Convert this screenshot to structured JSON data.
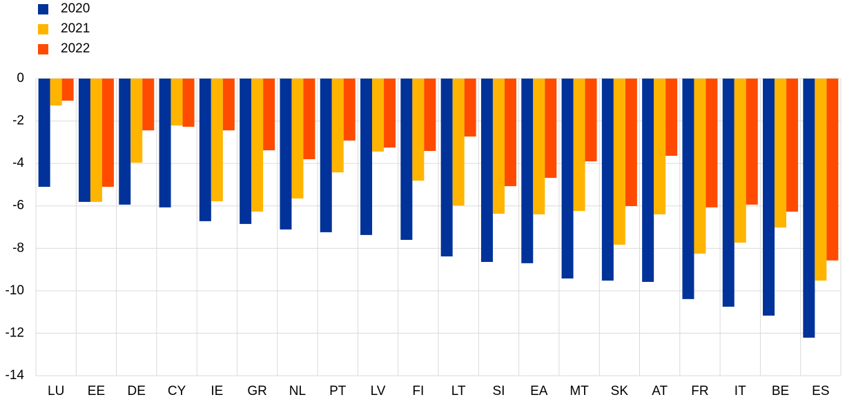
{
  "chart_data": {
    "type": "bar",
    "categories": [
      "LU",
      "EE",
      "DE",
      "CY",
      "IE",
      "GR",
      "NL",
      "PT",
      "LV",
      "FI",
      "LT",
      "SI",
      "EA",
      "MT",
      "SK",
      "AT",
      "FR",
      "IT",
      "BE",
      "ES"
    ],
    "series": [
      {
        "name": "2020",
        "color": "#003299",
        "values": [
          -5.1,
          -5.81,
          -5.94,
          -6.07,
          -6.72,
          -6.85,
          -7.11,
          -7.24,
          -7.37,
          -7.6,
          -8.38,
          -8.64,
          -8.7,
          -9.42,
          -9.52,
          -9.58,
          -10.39,
          -10.75,
          -11.17,
          -12.21
        ]
      },
      {
        "name": "2021",
        "color": "#ffb400",
        "values": [
          -1.27,
          -5.81,
          -3.96,
          -2.21,
          -5.78,
          -6.27,
          -5.65,
          -4.42,
          -3.44,
          -4.81,
          -5.98,
          -6.37,
          -6.4,
          -6.24,
          -7.83,
          -6.4,
          -8.25,
          -7.73,
          -7.02,
          -9.52
        ]
      },
      {
        "name": "2022",
        "color": "#ff4b00",
        "values": [
          -1.04,
          -5.1,
          -2.44,
          -2.27,
          -2.44,
          -3.38,
          -3.8,
          -2.92,
          -3.25,
          -3.41,
          -2.73,
          -5.07,
          -4.68,
          -3.9,
          -6.01,
          -3.64,
          -6.07,
          -5.94,
          -6.27,
          -8.57
        ]
      }
    ],
    "ylim": [
      -14,
      0
    ],
    "yticks": [
      0,
      -2,
      -4,
      -6,
      -8,
      -10,
      -12,
      -14
    ],
    "grid": true,
    "legend": "top-left"
  }
}
